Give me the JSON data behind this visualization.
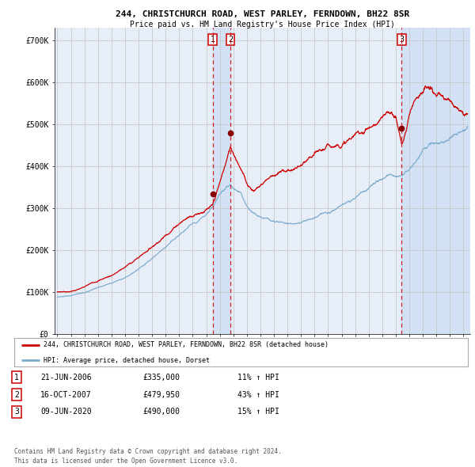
{
  "title_line1": "244, CHRISTCHURCH ROAD, WEST PARLEY, FERNDOWN, BH22 8SR",
  "title_line2": "Price paid vs. HM Land Registry's House Price Index (HPI)",
  "background_color": "#ffffff",
  "plot_bg_color": "#e8eef8",
  "grid_color": "#c8c8c8",
  "red_line_color": "#cc0000",
  "blue_line_color": "#7aabcc",
  "sale_marker_color": "#880000",
  "shade_color": "#d0dff5",
  "legend_line1": "244, CHRISTCHURCH ROAD, WEST PARLEY, FERNDOWN, BH22 8SR (detached house)",
  "legend_line2": "HPI: Average price, detached house, Dorset",
  "sales": [
    {
      "label": "1",
      "date": 2006.47,
      "price": 335000
    },
    {
      "label": "2",
      "date": 2007.79,
      "price": 479950
    },
    {
      "label": "3",
      "date": 2020.44,
      "price": 490000
    }
  ],
  "sale_table": [
    {
      "num": "1",
      "date": "21-JUN-2006",
      "price": "£335,000",
      "pct": "11% ↑ HPI"
    },
    {
      "num": "2",
      "date": "16-OCT-2007",
      "price": "£479,950",
      "pct": "43% ↑ HPI"
    },
    {
      "num": "3",
      "date": "09-JUN-2020",
      "price": "£490,000",
      "pct": "15% ↑ HPI"
    }
  ],
  "footer": "Contains HM Land Registry data © Crown copyright and database right 2024.\nThis data is licensed under the Open Government Licence v3.0.",
  "ylim": [
    0,
    730000
  ],
  "xlim_start": 1994.8,
  "xlim_end": 2025.5,
  "yticks": [
    0,
    100000,
    200000,
    300000,
    400000,
    500000,
    600000,
    700000
  ],
  "ytick_labels": [
    "£0",
    "£100K",
    "£200K",
    "£300K",
    "£400K",
    "£500K",
    "£600K",
    "£700K"
  ],
  "xticks": [
    1995,
    1996,
    1997,
    1998,
    1999,
    2000,
    2001,
    2002,
    2003,
    2004,
    2005,
    2006,
    2007,
    2008,
    2009,
    2010,
    2011,
    2012,
    2013,
    2014,
    2015,
    2016,
    2017,
    2018,
    2019,
    2020,
    2021,
    2022,
    2023,
    2024,
    2025
  ]
}
